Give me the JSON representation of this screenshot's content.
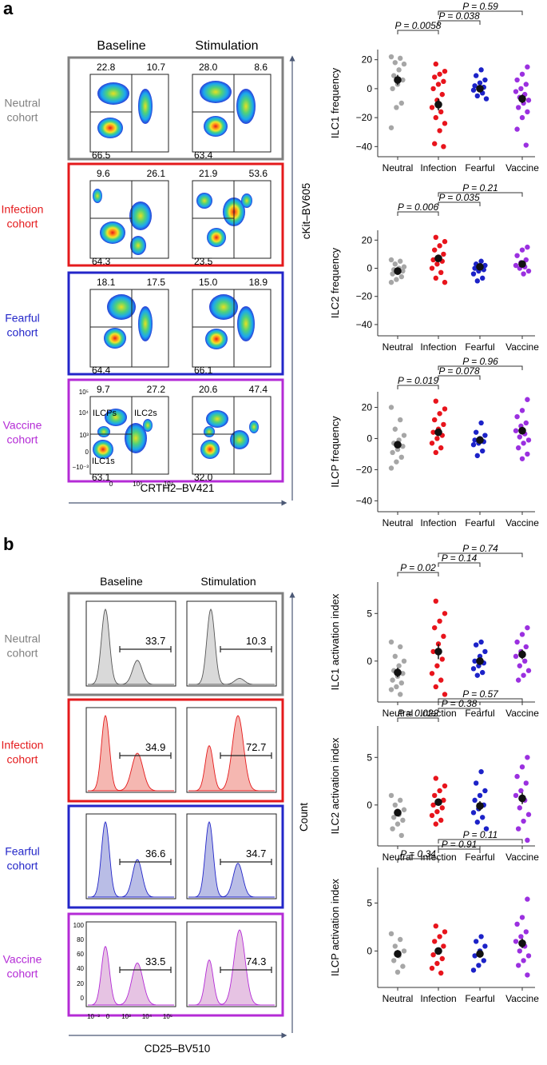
{
  "colors": {
    "neutral": "#a6a6a6",
    "infection": "#e8141c",
    "fearful": "#1c22c8",
    "vaccine": "#9b30e0",
    "neutral_box": "#808080",
    "infection_box": "#e41a1c",
    "fearful_box": "#2326c9",
    "vaccine_box": "#b42bd6",
    "hist_neutral": "#d9d9d9",
    "hist_infection": "#f5b7b1",
    "hist_fearful": "#b9bde6",
    "hist_vaccine": "#e6c3e3"
  },
  "panel_a": {
    "letter": "a",
    "col_baseline": "Baseline",
    "col_stimulation": "Stimulation",
    "x_axis_label": "CRTH2–BV421",
    "y_axis_label": "cKit–BV605",
    "gate_labels": {
      "ilcps": "ILCPs",
      "ilc2s": "ILC2s",
      "ilc1s": "ILC1s"
    },
    "y_ticks": [
      "10⁵",
      "10⁴",
      "10³",
      "0",
      "−10⁻³"
    ],
    "x_ticks": [
      "0",
      "10³",
      "10⁴"
    ],
    "rows": [
      {
        "name": "Neutral",
        "label_line1": "Neutral",
        "label_line2": "cohort",
        "baseline": {
          "tl": "22.8",
          "tr": "10.7",
          "bl": "66.5"
        },
        "stim": {
          "tl": "28.0",
          "tr": "8.6",
          "bl": "63.4"
        }
      },
      {
        "name": "Infection",
        "label_line1": "Infection",
        "label_line2": "cohort",
        "baseline": {
          "tl": "9.6",
          "tr": "26.1",
          "bl": "64.3"
        },
        "stim": {
          "tl": "21.9",
          "tr": "53.6",
          "bl": "23.5"
        }
      },
      {
        "name": "Fearful",
        "label_line1": "Fearful",
        "label_line2": "cohort",
        "baseline": {
          "tl": "18.1",
          "tr": "17.5",
          "bl": "64.4"
        },
        "stim": {
          "tl": "15.0",
          "tr": "18.9",
          "bl": "66.1"
        }
      },
      {
        "name": "Vaccine",
        "label_line1": "Vaccine",
        "label_line2": "cohort",
        "baseline": {
          "tl": "9.7",
          "tr": "27.2",
          "bl": "63.1"
        },
        "stim": {
          "tl": "20.6",
          "tr": "47.4",
          "bl": "32.0"
        }
      }
    ]
  },
  "panel_b": {
    "letter": "b",
    "col_baseline": "Baseline",
    "col_stimulation": "Stimulation",
    "x_axis_label": "CD25–BV510",
    "y_axis_label": "Count",
    "y_ticks": [
      "100",
      "80",
      "60",
      "40",
      "20",
      "0"
    ],
    "x_ticks": [
      "10⁻³",
      "0",
      "10³",
      "10⁴",
      "10⁵"
    ],
    "rows": [
      {
        "name": "Neutral",
        "label_line1": "Neutral",
        "label_line2": "cohort",
        "baseline": "33.7",
        "stim": "10.3"
      },
      {
        "name": "Infection",
        "label_line1": "Infection",
        "label_line2": "cohort",
        "baseline": "34.9",
        "stim": "72.7"
      },
      {
        "name": "Fearful",
        "label_line1": "Fearful",
        "label_line2": "cohort",
        "baseline": "36.6",
        "stim": "34.7"
      },
      {
        "name": "Vaccine",
        "label_line1": "Vaccine",
        "label_line2": "cohort",
        "baseline": "33.5",
        "stim": "74.3"
      }
    ]
  },
  "chart_data": [
    {
      "type": "scatter",
      "id": "ilc1-frequency",
      "ylabel": "ILC1 frequency",
      "categories": [
        "Neutral",
        "Infection",
        "Fearful",
        "Vaccine"
      ],
      "ylim": [
        -47,
        27
      ],
      "yticks": [
        20,
        0,
        -20,
        -40
      ],
      "means": [
        6,
        -11,
        0,
        -7
      ],
      "sems": [
        3.5,
        4,
        2,
        3
      ],
      "points": [
        [
          22,
          21,
          18,
          17,
          13,
          9,
          6,
          3,
          0,
          -10,
          -13,
          -27
        ],
        [
          17,
          12,
          10,
          8,
          5,
          3,
          0,
          -4,
          -8,
          -13,
          -16,
          -20,
          -24,
          -29,
          -38,
          -40
        ],
        [
          13,
          9,
          6,
          4,
          2,
          1,
          0,
          -1,
          -3,
          -5,
          -7
        ],
        [
          15,
          10,
          6,
          3,
          0,
          -2,
          -4,
          -6,
          -8,
          -10,
          -13,
          -16,
          -20,
          -28,
          -39
        ]
      ],
      "comparisons": [
        {
          "label": "P = 0.0058",
          "a": "Neutral",
          "b": "Infection"
        },
        {
          "label": "P = 0.038",
          "a": "Infection",
          "b": "Fearful"
        },
        {
          "label": "P = 0.59",
          "a": "Infection",
          "b": "Vaccine"
        }
      ]
    },
    {
      "type": "scatter",
      "id": "ilc2-frequency",
      "ylabel": "ILC2 frequency",
      "categories": [
        "Neutral",
        "Infection",
        "Fearful",
        "Vaccine"
      ],
      "ylim": [
        -48,
        27
      ],
      "yticks": [
        20,
        0,
        -20,
        -40
      ],
      "means": [
        -2,
        7,
        1,
        3
      ],
      "sems": [
        2,
        2,
        1.5,
        2
      ],
      "points": [
        [
          6,
          5,
          3,
          1,
          0,
          -1,
          -2,
          -3,
          -4,
          -6,
          -8,
          -10
        ],
        [
          22,
          19,
          16,
          13,
          10,
          8,
          6,
          5,
          3,
          0,
          -3,
          -7,
          -10
        ],
        [
          5,
          3,
          2,
          1,
          0,
          -1,
          -2,
          -4,
          -7,
          -9
        ],
        [
          15,
          13,
          9,
          6,
          4,
          2,
          1,
          0,
          -2,
          -4
        ]
      ],
      "comparisons": [
        {
          "label": "P = 0.006",
          "a": "Neutral",
          "b": "Infection"
        },
        {
          "label": "P = 0.035",
          "a": "Infection",
          "b": "Fearful"
        },
        {
          "label": "P = 0.21",
          "a": "Infection",
          "b": "Vaccine"
        }
      ]
    },
    {
      "type": "scatter",
      "id": "ilcp-frequency",
      "ylabel": "ILCP frequency",
      "categories": [
        "Neutral",
        "Infection",
        "Fearful",
        "Vaccine"
      ],
      "ylim": [
        -47,
        30
      ],
      "yticks": [
        20,
        0,
        -20,
        -40
      ],
      "means": [
        -4,
        4,
        -1,
        5
      ],
      "sems": [
        2,
        2.5,
        2,
        2.5
      ],
      "points": [
        [
          20,
          12,
          6,
          2,
          -1,
          -3,
          -5,
          -7,
          -9,
          -12,
          -15,
          -19
        ],
        [
          24,
          19,
          16,
          12,
          9,
          6,
          4,
          2,
          0,
          -3,
          -6,
          -9
        ],
        [
          10,
          4,
          2,
          0,
          -1,
          -2,
          -3,
          -4,
          -8,
          -11
        ],
        [
          25,
          18,
          14,
          10,
          8,
          5,
          3,
          1,
          -1,
          -3,
          -6,
          -10,
          -13
        ]
      ],
      "comparisons": [
        {
          "label": "P = 0.019",
          "a": "Neutral",
          "b": "Infection"
        },
        {
          "label": "P = 0.078",
          "a": "Infection",
          "b": "Fearful"
        },
        {
          "label": "P = 0.96",
          "a": "Infection",
          "b": "Vaccine"
        }
      ]
    },
    {
      "type": "scatter",
      "id": "ilc1-activation",
      "ylabel": "ILC1 activation index",
      "categories": [
        "Neutral",
        "Infection",
        "Fearful",
        "Vaccine"
      ],
      "ylim": [
        -4.3,
        8.3
      ],
      "yticks": [
        5,
        0
      ],
      "means": [
        -1.2,
        1,
        0,
        0.7
      ],
      "sems": [
        0.5,
        0.8,
        0.4,
        0.5
      ],
      "points": [
        [
          2,
          1.5,
          0.5,
          0,
          -0.5,
          -1,
          -1.3,
          -1.6,
          -2,
          -2.3,
          -2.7,
          -3,
          -3.5
        ],
        [
          6.3,
          5,
          4.2,
          3.5,
          2.6,
          1.8,
          1,
          0.2,
          -0.5,
          -1.3,
          -2,
          -2.7,
          -3.5
        ],
        [
          2,
          1.7,
          1,
          0.5,
          0,
          -0.2,
          -0.5,
          -0.8,
          -1.2,
          -1.5
        ],
        [
          3.5,
          2.8,
          2,
          1.5,
          1,
          0.5,
          0,
          -0.5,
          -1,
          -1.5,
          -2
        ]
      ],
      "comparisons": [
        {
          "label": "P = 0.02",
          "a": "Neutral",
          "b": "Infection"
        },
        {
          "label": "P = 0.14",
          "a": "Infection",
          "b": "Fearful"
        },
        {
          "label": "P = 0.74",
          "a": "Infection",
          "b": "Vaccine"
        }
      ]
    },
    {
      "type": "scatter",
      "id": "ilc2-activation",
      "ylabel": "ILC2 activation index",
      "categories": [
        "Neutral",
        "Infection",
        "Fearful",
        "Vaccine"
      ],
      "ylim": [
        -4.3,
        8.3
      ],
      "yticks": [
        5,
        0
      ],
      "means": [
        -0.8,
        0.3,
        -0.1,
        0.7
      ],
      "sems": [
        0.4,
        0.3,
        0.5,
        0.6
      ],
      "points": [
        [
          1,
          0.5,
          0,
          -0.5,
          -1,
          -1.3,
          -1.6,
          -2,
          -2.5,
          -3.2
        ],
        [
          2.8,
          2,
          1.5,
          1,
          0.5,
          0.2,
          0,
          -0.3,
          -0.7,
          -1.1,
          -1.6,
          -2
        ],
        [
          3.5,
          2.3,
          1.5,
          1,
          0.5,
          0,
          -0.4,
          -0.8,
          -1.3,
          -1.8,
          -2.5
        ],
        [
          5,
          4,
          3,
          2.3,
          1.5,
          1,
          0.5,
          -0.3,
          -1,
          -1.7,
          -2.5,
          -3.7
        ]
      ],
      "comparisons": [
        {
          "label": "P = 0.022",
          "a": "Neutral",
          "b": "Infection"
        },
        {
          "label": "P = 0.38",
          "a": "Infection",
          "b": "Fearful"
        },
        {
          "label": "P = 0.57",
          "a": "Infection",
          "b": "Vaccine"
        }
      ]
    },
    {
      "type": "scatter",
      "id": "ilcp-activation",
      "ylabel": "ILCP activation index",
      "categories": [
        "Neutral",
        "Infection",
        "Fearful",
        "Vaccine"
      ],
      "ylim": [
        -3.8,
        8.7
      ],
      "yticks": [
        5,
        0
      ],
      "means": [
        -0.3,
        0,
        -0.3,
        0.8
      ],
      "sems": [
        0.4,
        0.3,
        0.4,
        0.5
      ],
      "points": [
        [
          1.8,
          1.2,
          0.5,
          0,
          -0.5,
          -1,
          -1.6,
          -2.2
        ],
        [
          2.6,
          2,
          1.5,
          1,
          0.5,
          0,
          -0.4,
          -0.8,
          -1.3,
          -1.8,
          -2.3
        ],
        [
          1.5,
          1,
          0.5,
          0,
          -0.5,
          -1,
          -1.5,
          -2
        ],
        [
          5.4,
          3.5,
          2.8,
          2,
          1.5,
          1,
          0.5,
          0,
          -0.5,
          -1,
          -1.5,
          -2.5
        ]
      ],
      "comparisons": [
        {
          "label": "P = 0.34",
          "a": "Neutral",
          "b": "Infection"
        },
        {
          "label": "P = 0.91",
          "a": "Infection",
          "b": "Fearful"
        },
        {
          "label": "P = 0.11",
          "a": "Infection",
          "b": "Vaccine"
        }
      ]
    }
  ]
}
